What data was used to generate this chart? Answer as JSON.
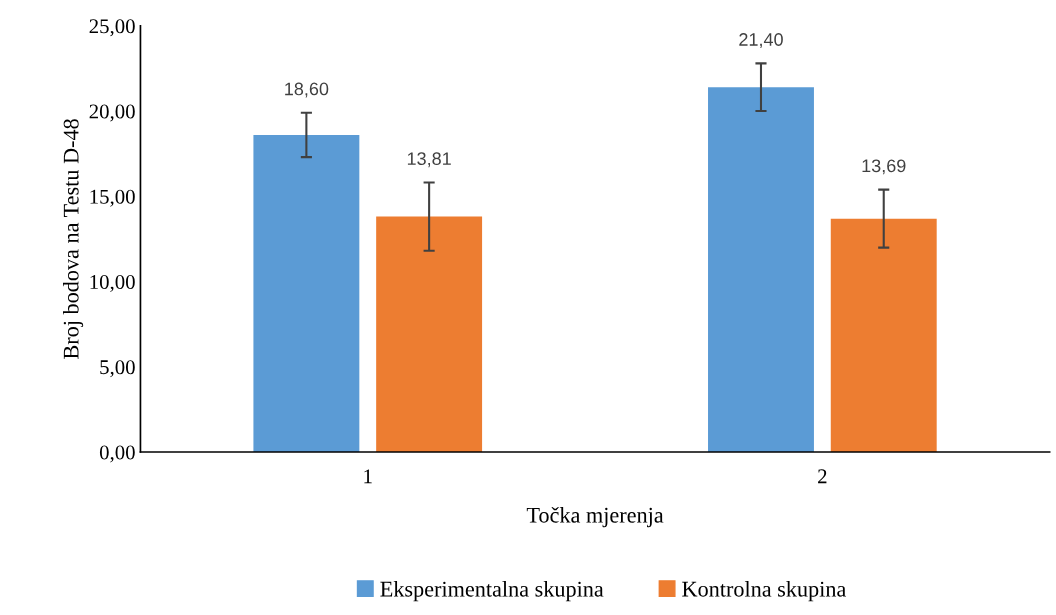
{
  "chart_data": {
    "type": "bar",
    "xlabel": "Točka mjerenja",
    "ylabel": "Broj bodova na Testu D-48",
    "categories": [
      "1",
      "2"
    ],
    "series": [
      {
        "name": "Eksperimentalna skupina",
        "color": "#5b9bd5",
        "values": [
          18.6,
          21.4
        ],
        "value_labels": [
          "18,60",
          "21,40"
        ],
        "errors": [
          1.3,
          1.4
        ]
      },
      {
        "name": "Kontrolna skupina",
        "color": "#ed7d31",
        "values": [
          13.81,
          13.69
        ],
        "value_labels": [
          "13,81",
          "13,69"
        ],
        "errors": [
          2.0,
          1.7
        ]
      }
    ],
    "ylim": [
      0,
      25
    ],
    "yticks": [
      {
        "value": 0,
        "label": "0,00"
      },
      {
        "value": 5,
        "label": "5,00"
      },
      {
        "value": 10,
        "label": "10,00"
      },
      {
        "value": 15,
        "label": "15,00"
      },
      {
        "value": 20,
        "label": "20,00"
      },
      {
        "value": 25,
        "label": "25,00"
      }
    ],
    "grid": false,
    "legend": "bottom"
  }
}
